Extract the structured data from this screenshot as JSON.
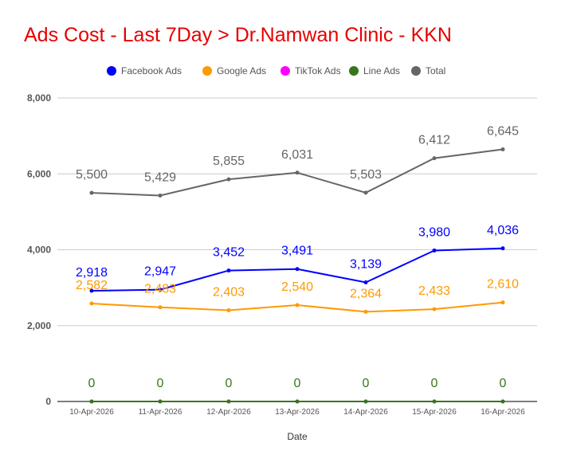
{
  "chart_data": {
    "type": "line",
    "title": "Ads Cost - Last 7Day > Dr.Namwan Clinic - KKN",
    "xlabel": "Date",
    "ylabel": "",
    "ylim": [
      0,
      8000
    ],
    "yticks": [
      0,
      2000,
      4000,
      6000,
      8000
    ],
    "ytick_labels": [
      "0",
      "2,000",
      "4,000",
      "6,000",
      "8,000"
    ],
    "grid": true,
    "legend_position": "top",
    "categories": [
      "10-Apr-2026",
      "11-Apr-2026",
      "12-Apr-2026",
      "13-Apr-2026",
      "14-Apr-2026",
      "15-Apr-2026",
      "16-Apr-2026"
    ],
    "series": [
      {
        "name": "Facebook Ads",
        "color": "#0000ff",
        "values": [
          2918,
          2947,
          3452,
          3491,
          3139,
          3980,
          4036
        ],
        "labels": [
          "2,918",
          "2,947",
          "3,452",
          "3,491",
          "3,139",
          "3,980",
          "4,036"
        ]
      },
      {
        "name": "Google Ads",
        "color": "#ff9900",
        "values": [
          2582,
          2483,
          2403,
          2540,
          2364,
          2433,
          2610
        ],
        "labels": [
          "2,582",
          "2,483",
          "2,403",
          "2,540",
          "2,364",
          "2,433",
          "2,610"
        ]
      },
      {
        "name": "TikTok Ads",
        "color": "#ff00ff",
        "values": [
          0,
          0,
          0,
          0,
          0,
          0,
          0
        ],
        "labels": []
      },
      {
        "name": "Line Ads",
        "color": "#38761d",
        "values": [
          0,
          0,
          0,
          0,
          0,
          0,
          0
        ],
        "labels": [
          "0",
          "0",
          "0",
          "0",
          "0",
          "0",
          "0"
        ]
      },
      {
        "name": "Total",
        "color": "#666666",
        "values": [
          5500,
          5429,
          5855,
          6031,
          5503,
          6412,
          6645
        ],
        "labels": [
          "5,500",
          "5,429",
          "5,855",
          "6,031",
          "5,503",
          "6,412",
          "6,645"
        ]
      }
    ]
  }
}
